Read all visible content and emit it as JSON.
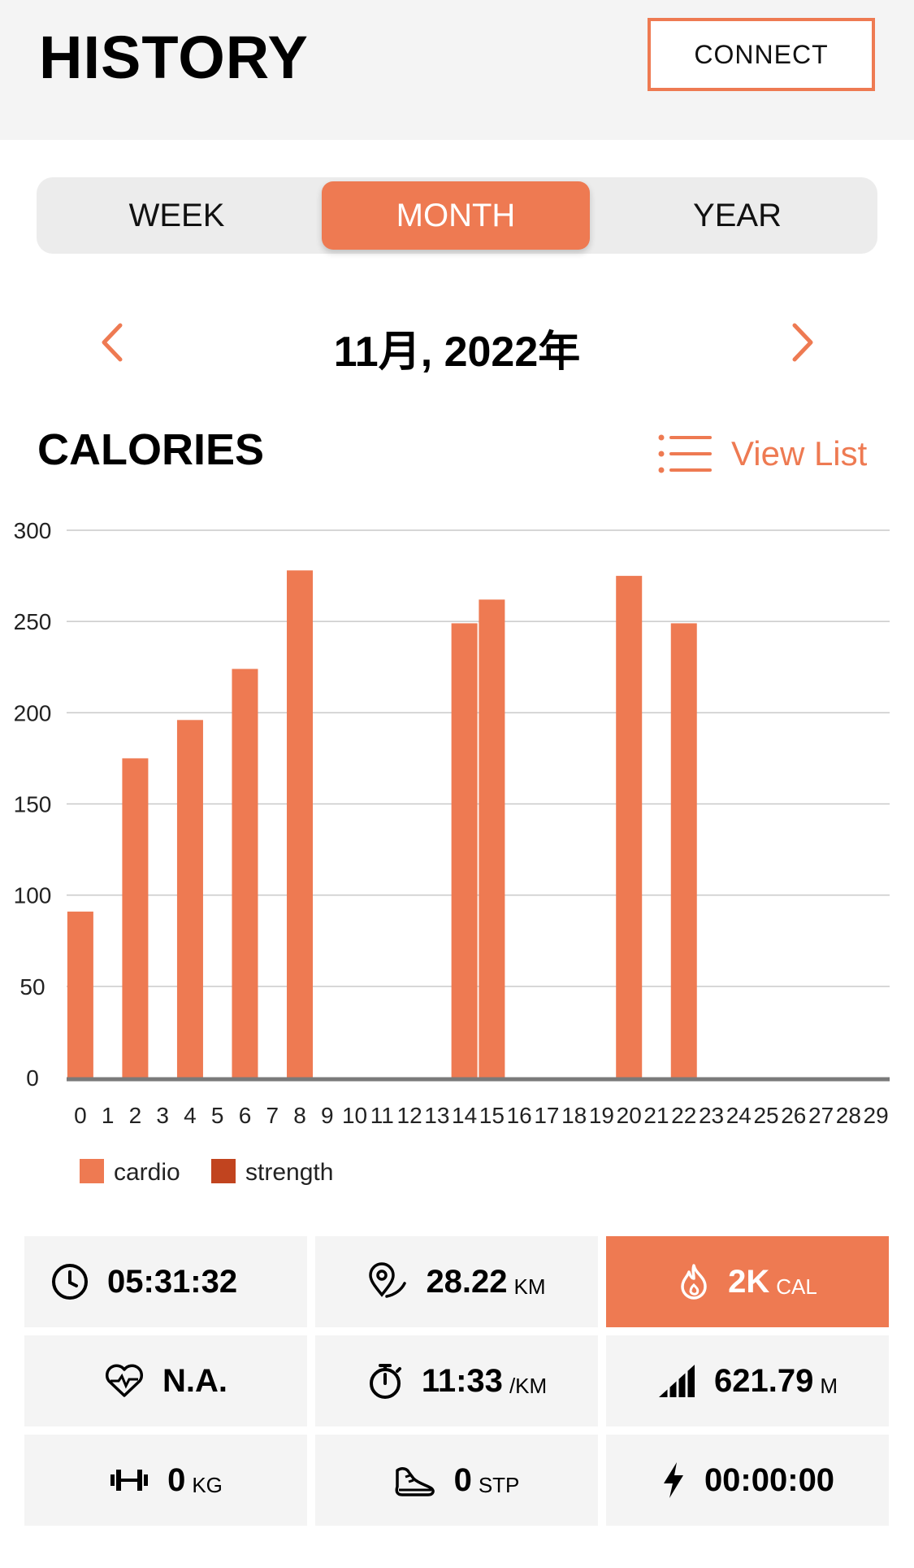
{
  "header": {
    "title": "HISTORY",
    "connect_label": "CONNECT"
  },
  "tabs": [
    {
      "label": "WEEK",
      "selected": false
    },
    {
      "label": "MONTH",
      "selected": true
    },
    {
      "label": "YEAR",
      "selected": false
    }
  ],
  "period": {
    "label": "11月, 2022年"
  },
  "section": {
    "title": "CALORIES",
    "view_list_label": "View List"
  },
  "colors": {
    "accent": "#ee7a52",
    "strength": "#c1441f",
    "grid": "#c9c9c9",
    "axis": "#7a7a7a"
  },
  "chart_data": {
    "type": "bar",
    "title": "CALORIES",
    "categories": [
      "0",
      "1",
      "2",
      "3",
      "4",
      "5",
      "6",
      "7",
      "8",
      "9",
      "10",
      "11",
      "12",
      "13",
      "14",
      "15",
      "16",
      "17",
      "18",
      "19",
      "20",
      "21",
      "22",
      "23",
      "24",
      "25",
      "26",
      "27",
      "28",
      "29"
    ],
    "series": [
      {
        "name": "cardio",
        "values": [
          91,
          0,
          175,
          0,
          196,
          0,
          224,
          0,
          278,
          0,
          0,
          0,
          0,
          0,
          249,
          262,
          0,
          0,
          0,
          0,
          275,
          0,
          249,
          0,
          0,
          0,
          0,
          0,
          0,
          0
        ]
      },
      {
        "name": "strength",
        "values": [
          0,
          0,
          0,
          0,
          0,
          0,
          0,
          0,
          0,
          0,
          0,
          0,
          0,
          0,
          0,
          0,
          0,
          0,
          0,
          0,
          0,
          0,
          0,
          0,
          0,
          0,
          0,
          0,
          0,
          0
        ]
      }
    ],
    "ylim": [
      0,
      300
    ],
    "yticks": [
      0,
      50,
      100,
      150,
      200,
      250,
      300
    ],
    "grid": true,
    "legend": "bottom-left"
  },
  "stats": [
    {
      "icon": "clock-icon",
      "value": "05:31:32",
      "unit": ""
    },
    {
      "icon": "route-pin-icon",
      "value": "28.22",
      "unit": "KM"
    },
    {
      "icon": "flame-icon",
      "value": "2K",
      "unit": "CAL"
    },
    {
      "icon": "heart-rate-icon",
      "value": "N.A.",
      "unit": ""
    },
    {
      "icon": "stopwatch-icon",
      "value": "11:33",
      "unit": "/KM"
    },
    {
      "icon": "elevation-icon",
      "value": "621.79",
      "unit": "M"
    },
    {
      "icon": "dumbbell-icon",
      "value": "0",
      "unit": "KG"
    },
    {
      "icon": "shoe-icon",
      "value": "0",
      "unit": "STP"
    },
    {
      "icon": "lightning-icon",
      "value": "00:00:00",
      "unit": ""
    }
  ]
}
